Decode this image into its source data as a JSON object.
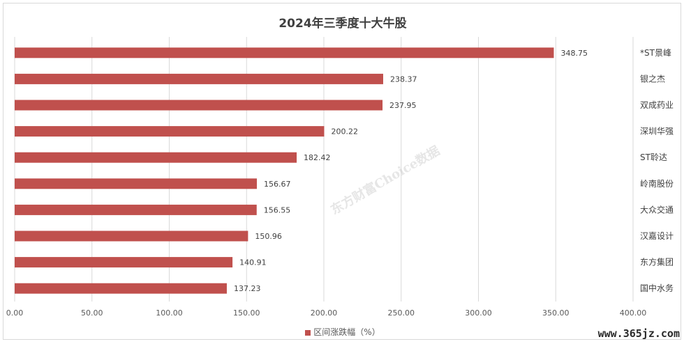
{
  "watermark": "东方财富Choice数据",
  "site": "www.365jz.com",
  "legend_label": "区间涨跌幅（%）",
  "chart_data": {
    "type": "bar",
    "orientation": "horizontal",
    "title": "2024年三季度十大牛股",
    "categories": [
      "*ST景峰",
      "银之杰",
      "双成药业",
      "深圳华强",
      "ST聆达",
      "岭南股份",
      "大众交通",
      "汉嘉设计",
      "东方集团",
      "国中水务"
    ],
    "series": [
      {
        "name": "区间涨跌幅（%）",
        "values": [
          348.75,
          238.37,
          237.95,
          200.22,
          182.42,
          156.67,
          156.55,
          150.96,
          140.91,
          137.23
        ],
        "color": "#c0504d"
      }
    ],
    "data_labels": [
      "348.75",
      "238.37",
      "237.95",
      "200.22",
      "182.42",
      "156.67",
      "156.55",
      "150.96",
      "140.91",
      "137.23"
    ],
    "xlim": [
      0,
      400
    ],
    "xticks": [
      "0.00",
      "50.00",
      "100.00",
      "150.00",
      "200.00",
      "250.00",
      "300.00",
      "350.00",
      "400.00"
    ],
    "category_axis_position": "right",
    "grid": true,
    "legend_position": "bottom"
  }
}
